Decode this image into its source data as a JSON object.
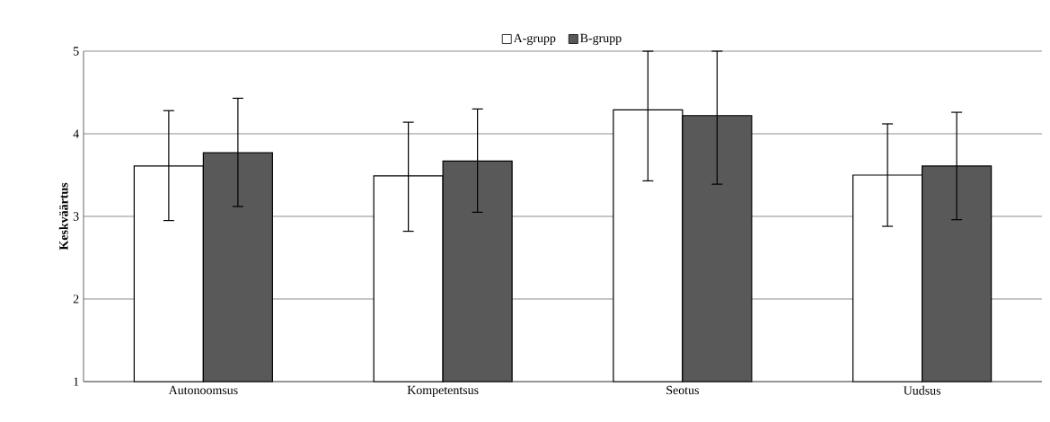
{
  "chart_data": {
    "type": "bar",
    "ylabel": "Keskväärtus",
    "categories": [
      "Autonoomsus",
      "Kompetentsus",
      "Seotus",
      "Uudsus"
    ],
    "series": [
      {
        "name": "A-grupp",
        "color": "#ffffff",
        "values": [
          3.61,
          3.49,
          4.29,
          3.5
        ],
        "errors": [
          [
            2.95,
            4.28
          ],
          [
            2.82,
            4.14
          ],
          [
            3.43,
            5
          ],
          [
            2.88,
            4.12
          ]
        ]
      },
      {
        "name": "B-grupp",
        "color": "#595959",
        "values": [
          3.77,
          3.67,
          4.22,
          3.61
        ],
        "errors": [
          [
            3.12,
            4.43
          ],
          [
            3.05,
            4.3
          ],
          [
            3.39,
            5
          ],
          [
            2.96,
            4.26
          ]
        ]
      }
    ],
    "ylim": [
      1,
      5
    ],
    "yticks": [
      1,
      2,
      3,
      4,
      5
    ],
    "grid": "y",
    "legend": "top"
  }
}
